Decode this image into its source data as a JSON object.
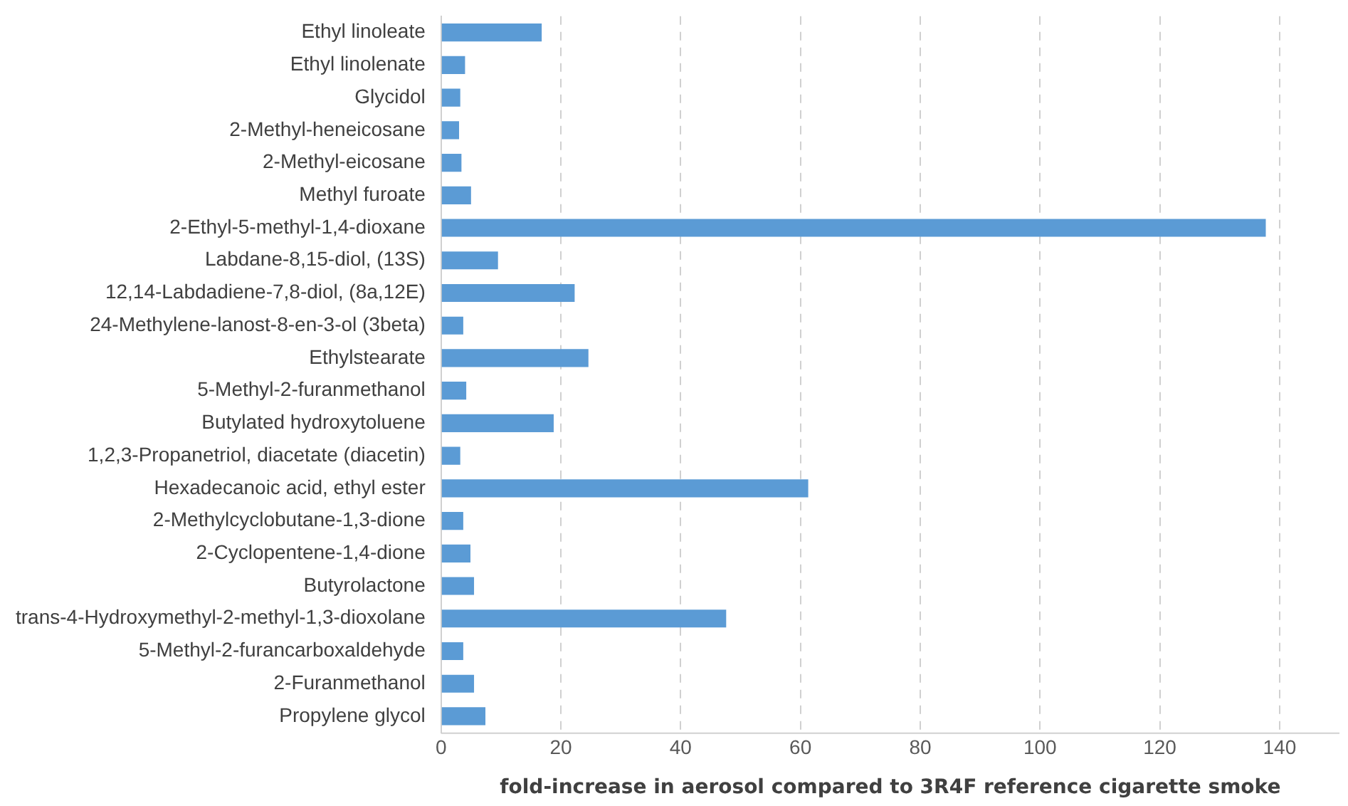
{
  "chart_data": {
    "type": "bar",
    "orientation": "horizontal",
    "xlabel": "fold-increase in aerosol compared to 3R4F reference cigarette smoke",
    "categories": [
      "Ethyl linoleate",
      "Ethyl linolenate",
      "Glycidol",
      "2-Methyl-heneicosane",
      "2-Methyl-eicosane",
      "Methyl furoate",
      "2-Ethyl-5-methyl-1,4-dioxane",
      "Labdane-8,15-diol, (13S)",
      "12,14-Labdadiene-7,8-diol, (8a,12E)",
      "24-Methylene-lanost-8-en-3-ol (3beta)",
      "Ethylstearate",
      "5-Methyl-2-furanmethanol",
      "Butylated hydroxytoluene",
      "1,2,3-Propanetriol, diacetate (diacetin)",
      "Hexadecanoic acid, ethyl ester",
      "2-Methylcyclobutane-1,3-dione",
      "2-Cyclopentene-1,4-dione",
      "Butyrolactone",
      "trans-4-Hydroxymethyl-2-methyl-1,3-dioxolane",
      "5-Methyl-2-furancarboxaldehyde",
      "2-Furanmethanol",
      "Propylene glycol"
    ],
    "values": [
      16.8,
      4.0,
      3.2,
      3.0,
      3.4,
      5.0,
      137.7,
      9.5,
      22.3,
      3.7,
      24.6,
      4.2,
      18.8,
      3.2,
      61.3,
      3.7,
      4.9,
      5.5,
      47.6,
      3.7,
      5.5,
      7.4
    ],
    "color": "#5b9bd5",
    "xlim": [
      0,
      150
    ],
    "xticks": [
      0,
      20,
      40,
      60,
      80,
      100,
      120,
      140
    ],
    "grid": "x",
    "line_style": "dashed"
  }
}
